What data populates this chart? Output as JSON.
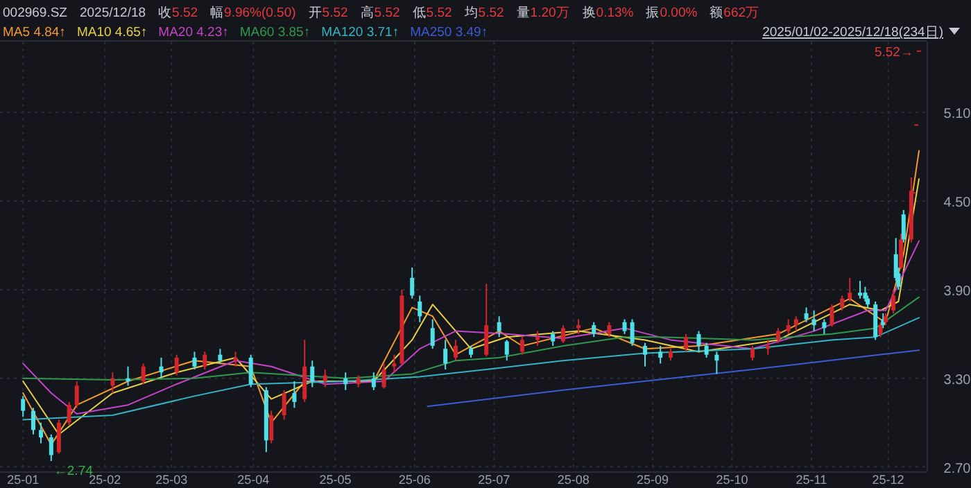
{
  "chart_data": {
    "type": "candlestick",
    "annotations": [
      "002969.SZ",
      "2025/12/18",
      "收",
      "5.52",
      "幅",
      "9.96%(0.50)",
      "开",
      "5.52",
      "高",
      "5.52",
      "低",
      "5.52",
      "均",
      "5.52",
      "量",
      "1.20万",
      "换",
      "0.13%",
      "振",
      "0.00%",
      "额",
      "662万",
      "2025/01/02-2025/12/18(234日)",
      {
        "text": "←2.74",
        "x": "2025-01-13",
        "y": 2.74
      },
      {
        "text": "5.52→",
        "x": "2025-12-18",
        "y": 5.52
      }
    ],
    "x": [
      "2025-01-02",
      "2025-01-06",
      "2025-01-09",
      "2025-01-13",
      "2025-01-16",
      "2025-01-20",
      "2025-01-23",
      "2025-02-06",
      "2025-02-12",
      "2025-02-18",
      "2025-02-25",
      "2025-03-03",
      "2025-03-10",
      "2025-03-14",
      "2025-03-20",
      "2025-03-26",
      "2025-04-01",
      "2025-04-07",
      "2025-04-09",
      "2025-04-14",
      "2025-04-18",
      "2025-04-22",
      "2025-04-25",
      "2025-04-30",
      "2025-05-08",
      "2025-05-13",
      "2025-05-19",
      "2025-05-23",
      "2025-05-27",
      "2025-05-30",
      "2025-06-03",
      "2025-06-06",
      "2025-06-11",
      "2025-06-16",
      "2025-06-20",
      "2025-06-26",
      "2025-07-02",
      "2025-07-07",
      "2025-07-10",
      "2025-07-16",
      "2025-07-22",
      "2025-07-28",
      "2025-08-01",
      "2025-08-07",
      "2025-08-13",
      "2025-08-19",
      "2025-08-25",
      "2025-08-28",
      "2025-09-02",
      "2025-09-08",
      "2025-09-12",
      "2025-09-18",
      "2025-09-23",
      "2025-09-26",
      "2025-09-30",
      "2025-10-14",
      "2025-10-20",
      "2025-10-24",
      "2025-10-28",
      "2025-10-31",
      "2025-11-04",
      "2025-11-07",
      "2025-11-11",
      "2025-11-14",
      "2025-11-18",
      "2025-11-21",
      "2025-11-25",
      "2025-11-27",
      "2025-11-28",
      "2025-12-01",
      "2025-12-03",
      "2025-12-04",
      "2025-12-05",
      "2025-12-08",
      "2025-12-09",
      "2025-12-10",
      "2025-12-11",
      "2025-12-12",
      "2025-12-15",
      "2025-12-16",
      "2025-12-17",
      "2025-12-18"
    ],
    "ohlc": [
      [
        3.16,
        3.18,
        3.04,
        3.08
      ],
      [
        3.08,
        3.1,
        2.92,
        2.95
      ],
      [
        2.95,
        3.0,
        2.86,
        2.9
      ],
      [
        2.9,
        2.92,
        2.74,
        2.78
      ],
      [
        2.8,
        3.02,
        2.79,
        3.0
      ],
      [
        3.0,
        3.14,
        2.98,
        3.12
      ],
      [
        3.12,
        3.28,
        3.1,
        3.25
      ],
      [
        3.25,
        3.34,
        3.2,
        3.3
      ],
      [
        3.3,
        3.38,
        3.25,
        3.28
      ],
      [
        3.28,
        3.4,
        3.26,
        3.38
      ],
      [
        3.38,
        3.44,
        3.3,
        3.34
      ],
      [
        3.34,
        3.46,
        3.32,
        3.44
      ],
      [
        3.44,
        3.48,
        3.36,
        3.38
      ],
      [
        3.38,
        3.48,
        3.36,
        3.46
      ],
      [
        3.46,
        3.5,
        3.4,
        3.42
      ],
      [
        3.42,
        3.48,
        3.38,
        3.44
      ],
      [
        3.44,
        3.46,
        3.24,
        3.26
      ],
      [
        3.22,
        3.24,
        2.8,
        2.88
      ],
      [
        2.88,
        3.08,
        2.86,
        3.05
      ],
      [
        3.05,
        3.22,
        3.02,
        3.2
      ],
      [
        3.2,
        3.28,
        3.1,
        3.14
      ],
      [
        3.16,
        3.56,
        3.14,
        3.38
      ],
      [
        3.38,
        3.42,
        3.24,
        3.28
      ],
      [
        3.28,
        3.36,
        3.24,
        3.32
      ],
      [
        3.3,
        3.34,
        3.22,
        3.26
      ],
      [
        3.26,
        3.32,
        3.24,
        3.3
      ],
      [
        3.3,
        3.34,
        3.22,
        3.24
      ],
      [
        3.24,
        3.4,
        3.23,
        3.36
      ],
      [
        3.38,
        3.46,
        3.34,
        3.4
      ],
      [
        3.4,
        3.9,
        3.39,
        3.86
      ],
      [
        3.98,
        4.05,
        3.84,
        3.86
      ],
      [
        3.82,
        3.86,
        3.68,
        3.72
      ],
      [
        3.64,
        3.7,
        3.5,
        3.52
      ],
      [
        3.5,
        3.56,
        3.36,
        3.4
      ],
      [
        3.44,
        3.56,
        3.42,
        3.52
      ],
      [
        3.5,
        3.52,
        3.44,
        3.46
      ],
      [
        3.46,
        3.94,
        3.45,
        3.66
      ],
      [
        3.68,
        3.72,
        3.58,
        3.62
      ],
      [
        3.55,
        3.56,
        3.42,
        3.46
      ],
      [
        3.48,
        3.58,
        3.46,
        3.56
      ],
      [
        3.56,
        3.62,
        3.52,
        3.58
      ],
      [
        3.6,
        3.62,
        3.52,
        3.55
      ],
      [
        3.55,
        3.66,
        3.54,
        3.64
      ],
      [
        3.64,
        3.7,
        3.6,
        3.66
      ],
      [
        3.66,
        3.68,
        3.58,
        3.6
      ],
      [
        3.6,
        3.68,
        3.58,
        3.66
      ],
      [
        3.68,
        3.7,
        3.6,
        3.62
      ],
      [
        3.68,
        3.7,
        3.52,
        3.54
      ],
      [
        3.52,
        3.54,
        3.38,
        3.46
      ],
      [
        3.48,
        3.52,
        3.4,
        3.44
      ],
      [
        3.44,
        3.5,
        3.42,
        3.48
      ],
      [
        3.5,
        3.6,
        3.48,
        3.58
      ],
      [
        3.6,
        3.62,
        3.48,
        3.52
      ],
      [
        3.52,
        3.54,
        3.44,
        3.46
      ],
      [
        3.46,
        3.48,
        3.33,
        3.42
      ],
      [
        3.44,
        3.52,
        3.42,
        3.5
      ],
      [
        3.5,
        3.56,
        3.46,
        3.52
      ],
      [
        3.56,
        3.64,
        3.54,
        3.62
      ],
      [
        3.62,
        3.7,
        3.6,
        3.66
      ],
      [
        3.66,
        3.72,
        3.62,
        3.7
      ],
      [
        3.74,
        3.78,
        3.68,
        3.7
      ],
      [
        3.7,
        3.76,
        3.62,
        3.66
      ],
      [
        3.68,
        3.7,
        3.6,
        3.64
      ],
      [
        3.66,
        3.8,
        3.65,
        3.78
      ],
      [
        3.78,
        3.86,
        3.76,
        3.84
      ],
      [
        3.84,
        3.98,
        3.82,
        3.88
      ],
      [
        3.88,
        3.96,
        3.84,
        3.86
      ],
      [
        3.88,
        3.92,
        3.82,
        3.84
      ],
      [
        3.84,
        3.86,
        3.78,
        3.8
      ],
      [
        3.8,
        3.82,
        3.56,
        3.58
      ],
      [
        3.6,
        3.68,
        3.58,
        3.66
      ],
      [
        3.7,
        3.74,
        3.64,
        3.66
      ],
      [
        3.68,
        3.74,
        3.66,
        3.72
      ],
      [
        3.76,
        3.9,
        3.74,
        3.86
      ],
      [
        4.14,
        4.25,
        3.96,
        3.98
      ],
      [
        4.01,
        4.05,
        3.9,
        3.92
      ],
      [
        4.05,
        4.28,
        4.04,
        4.24
      ],
      [
        4.41,
        4.44,
        4.22,
        4.24
      ],
      [
        4.24,
        4.66,
        4.22,
        4.57
      ],
      [
        4.56,
        4.56,
        4.56,
        4.56
      ],
      [
        5.02,
        5.02,
        5.02,
        5.02
      ],
      [
        5.52,
        5.52,
        5.52,
        5.52
      ]
    ],
    "colors": [
      "#4fe0e8",
      "#4fe0e8",
      "#4fe0e8",
      "#4fe0e8",
      "#d0262c",
      "#d0262c",
      "#d0262c",
      "#d0262c",
      "#4fe0e8",
      "#d0262c",
      "#4fe0e8",
      "#d0262c",
      "#4fe0e8",
      "#d0262c",
      "#4fe0e8",
      "#d0262c",
      "#4fe0e8",
      "#4fe0e8",
      "#d0262c",
      "#d0262c",
      "#4fe0e8",
      "#d0262c",
      "#4fe0e8",
      "#d0262c",
      "#4fe0e8",
      "#d0262c",
      "#4fe0e8",
      "#d0262c",
      "#d0262c",
      "#d0262c",
      "#4fe0e8",
      "#4fe0e8",
      "#4fe0e8",
      "#4fe0e8",
      "#d0262c",
      "#4fe0e8",
      "#d0262c",
      "#4fe0e8",
      "#4fe0e8",
      "#d0262c",
      "#d0262c",
      "#4fe0e8",
      "#d0262c",
      "#d0262c",
      "#4fe0e8",
      "#d0262c",
      "#4fe0e8",
      "#4fe0e8",
      "#4fe0e8",
      "#4fe0e8",
      "#d0262c",
      "#d0262c",
      "#4fe0e8",
      "#4fe0e8",
      "#4fe0e8",
      "#d0262c",
      "#d0262c",
      "#d0262c",
      "#d0262c",
      "#d0262c",
      "#4fe0e8",
      "#4fe0e8",
      "#4fe0e8",
      "#d0262c",
      "#d0262c",
      "#d0262c",
      "#4fe0e8",
      "#4fe0e8",
      "#4fe0e8",
      "#4fe0e8",
      "#d0262c",
      "#4fe0e8",
      "#d0262c",
      "#d0262c",
      "#4fe0e8",
      "#4fe0e8",
      "#d0262c",
      "#4fe0e8",
      "#d0262c",
      "#d0262c",
      "#d0262c",
      "#d0262c"
    ],
    "series": [
      {
        "name": "MA5 4.84↑",
        "color": "#f39c2c",
        "type": "line",
        "x": [
          "2025-01-02",
          "2025-01-13",
          "2025-01-23",
          "2025-02-12",
          "2025-03-10",
          "2025-04-01",
          "2025-04-09",
          "2025-04-22",
          "2025-05-19",
          "2025-06-03",
          "2025-06-11",
          "2025-06-20",
          "2025-07-07",
          "2025-07-16",
          "2025-08-13",
          "2025-09-02",
          "2025-09-23",
          "2025-10-24",
          "2025-11-21",
          "2025-12-03",
          "2025-12-05",
          "2025-12-12",
          "2025-12-18"
        ],
        "values": [
          3.2,
          2.85,
          3.12,
          3.28,
          3.42,
          3.38,
          3.0,
          3.28,
          3.28,
          3.78,
          3.72,
          3.46,
          3.62,
          3.52,
          3.64,
          3.5,
          3.52,
          3.6,
          3.84,
          3.7,
          3.68,
          4.14,
          4.84
        ]
      },
      {
        "name": "MA10 4.65↑",
        "color": "#e8d044",
        "type": "line",
        "x": [
          "2025-01-02",
          "2025-01-16",
          "2025-02-06",
          "2025-03-03",
          "2025-03-26",
          "2025-04-09",
          "2025-04-25",
          "2025-05-19",
          "2025-06-03",
          "2025-06-11",
          "2025-06-26",
          "2025-07-10",
          "2025-08-07",
          "2025-09-02",
          "2025-09-23",
          "2025-10-24",
          "2025-11-21",
          "2025-12-03",
          "2025-12-10",
          "2025-12-18"
        ],
        "values": [
          3.28,
          2.92,
          3.2,
          3.34,
          3.44,
          3.16,
          3.28,
          3.28,
          3.56,
          3.8,
          3.5,
          3.58,
          3.62,
          3.56,
          3.48,
          3.56,
          3.8,
          3.76,
          3.82,
          4.65
        ]
      },
      {
        "name": "MA20 4.23↑",
        "color": "#c445c8",
        "type": "line",
        "x": [
          "2025-01-02",
          "2025-01-13",
          "2025-01-23",
          "2025-02-12",
          "2025-03-03",
          "2025-03-26",
          "2025-04-09",
          "2025-04-30",
          "2025-05-23",
          "2025-06-06",
          "2025-06-20",
          "2025-07-10",
          "2025-08-01",
          "2025-08-25",
          "2025-09-12",
          "2025-10-14",
          "2025-11-07",
          "2025-11-28",
          "2025-12-05",
          "2025-12-18"
        ],
        "values": [
          3.4,
          3.2,
          3.06,
          3.12,
          3.26,
          3.42,
          3.38,
          3.26,
          3.28,
          3.5,
          3.62,
          3.6,
          3.57,
          3.64,
          3.56,
          3.5,
          3.62,
          3.76,
          3.76,
          4.23
        ]
      },
      {
        "name": "MA60 3.85↑",
        "color": "#2e9a4e",
        "type": "line",
        "x": [
          "2025-01-02",
          "2025-02-06",
          "2025-03-10",
          "2025-04-01",
          "2025-05-08",
          "2025-06-03",
          "2025-06-20",
          "2025-07-07",
          "2025-08-01",
          "2025-08-25",
          "2025-09-08",
          "2025-10-14",
          "2025-11-14",
          "2025-12-01",
          "2025-12-18"
        ],
        "values": [
          3.3,
          3.29,
          3.3,
          3.34,
          3.3,
          3.33,
          3.42,
          3.44,
          3.52,
          3.58,
          3.58,
          3.56,
          3.6,
          3.64,
          3.85
        ]
      },
      {
        "name": "MA120 3.71↑",
        "color": "#34b4c4",
        "type": "line",
        "x": [
          "2025-01-02",
          "2025-02-06",
          "2025-03-10",
          "2025-04-01",
          "2025-05-08",
          "2025-06-06",
          "2025-07-02",
          "2025-08-01",
          "2025-09-02",
          "2025-10-14",
          "2025-11-14",
          "2025-12-01",
          "2025-12-18"
        ],
        "values": [
          3.02,
          3.05,
          3.18,
          3.26,
          3.28,
          3.31,
          3.36,
          3.42,
          3.47,
          3.5,
          3.56,
          3.58,
          3.71
        ]
      },
      {
        "name": "MA250 3.49↑",
        "color": "#3c5cd6",
        "type": "line",
        "x": [
          "2025-06-09",
          "2025-08-01",
          "2025-10-14",
          "2025-12-18"
        ],
        "values": [
          3.11,
          3.22,
          3.36,
          3.49
        ]
      }
    ],
    "xlim": [
      "2024-12-24",
      "2025-12-21"
    ],
    "xticks": [
      {
        "value": "2025-01-02",
        "label": "25-01"
      },
      {
        "value": "2025-02-03",
        "label": "25-02"
      },
      {
        "value": "2025-03-01",
        "label": "25-03"
      },
      {
        "value": "2025-04-02",
        "label": "25-04"
      },
      {
        "value": "2025-05-04",
        "label": "25-05"
      },
      {
        "value": "2025-06-04",
        "label": "25-06"
      },
      {
        "value": "2025-07-05",
        "label": "25-07"
      },
      {
        "value": "2025-08-05",
        "label": "25-08"
      },
      {
        "value": "2025-09-05",
        "label": "25-09"
      },
      {
        "value": "2025-10-06",
        "label": "25-10"
      },
      {
        "value": "2025-11-06",
        "label": "25-11"
      },
      {
        "value": "2025-12-06",
        "label": "25-12"
      }
    ],
    "ylim": [
      2.67,
      5.58
    ],
    "yticks": [
      {
        "value": 2.7,
        "label": "2.70"
      },
      {
        "value": 3.3,
        "label": "3.30"
      },
      {
        "value": 3.9,
        "label": "3.90"
      },
      {
        "value": 4.5,
        "label": "4.50"
      },
      {
        "value": 5.1,
        "label": "5.10"
      }
    ],
    "grid": true,
    "legend": "top left"
  }
}
